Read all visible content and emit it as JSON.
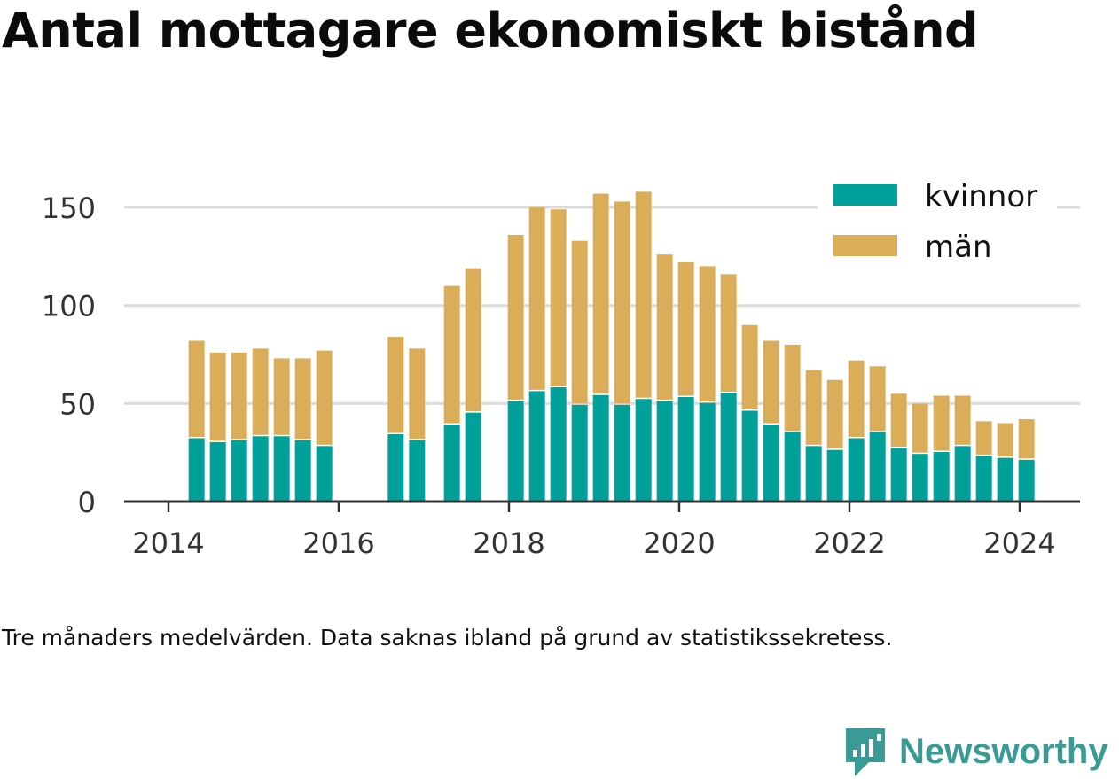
{
  "title": "Antal mottagare ekonomiskt bistånd",
  "note": "Tre månaders medelvärden. Data saknas ibland på grund av statistikssekretess.",
  "brand": {
    "name": "Newsworthy",
    "icon": "newsworthy-logo-icon",
    "color": "#3a9a96"
  },
  "chart_data": {
    "type": "bar",
    "stacked": true,
    "title": "",
    "xlabel": "",
    "ylabel": "",
    "ylim": [
      0,
      160
    ],
    "xlim": [
      2013.6,
      2024.5
    ],
    "grid": true,
    "legend_position": "top-right",
    "x_ticks": [
      "2014",
      "2016",
      "2018",
      "2020",
      "2022",
      "2024"
    ],
    "y_ticks": [
      "0",
      "50",
      "100",
      "150"
    ],
    "x": [
      2014.33,
      2014.58,
      2014.83,
      2015.08,
      2015.33,
      2015.58,
      2015.83,
      2016.67,
      2016.92,
      2017.33,
      2017.58,
      2018.08,
      2018.33,
      2018.58,
      2018.83,
      2019.08,
      2019.33,
      2019.58,
      2019.83,
      2020.08,
      2020.33,
      2020.58,
      2020.83,
      2021.08,
      2021.33,
      2021.58,
      2021.83,
      2022.08,
      2022.33,
      2022.58,
      2022.83,
      2023.08,
      2023.33,
      2023.58,
      2023.83,
      2024.08
    ],
    "series": [
      {
        "name": "kvinnor",
        "color": "#00a19a",
        "values": [
          33,
          31,
          32,
          34,
          34,
          32,
          29,
          35,
          32,
          40,
          46,
          52,
          57,
          59,
          50,
          55,
          50,
          53,
          52,
          54,
          51,
          56,
          47,
          40,
          36,
          29,
          27,
          33,
          36,
          28,
          25,
          26,
          29,
          24,
          23,
          22
        ]
      },
      {
        "name": "män",
        "color": "#dcad58",
        "values": [
          49,
          45,
          44,
          44,
          39,
          41,
          48,
          49,
          46,
          70,
          73,
          84,
          93,
          90,
          83,
          102,
          103,
          105,
          74,
          68,
          69,
          60,
          43,
          42,
          44,
          38,
          35,
          39,
          33,
          27,
          25,
          28,
          25,
          17,
          17,
          20
        ]
      }
    ]
  }
}
